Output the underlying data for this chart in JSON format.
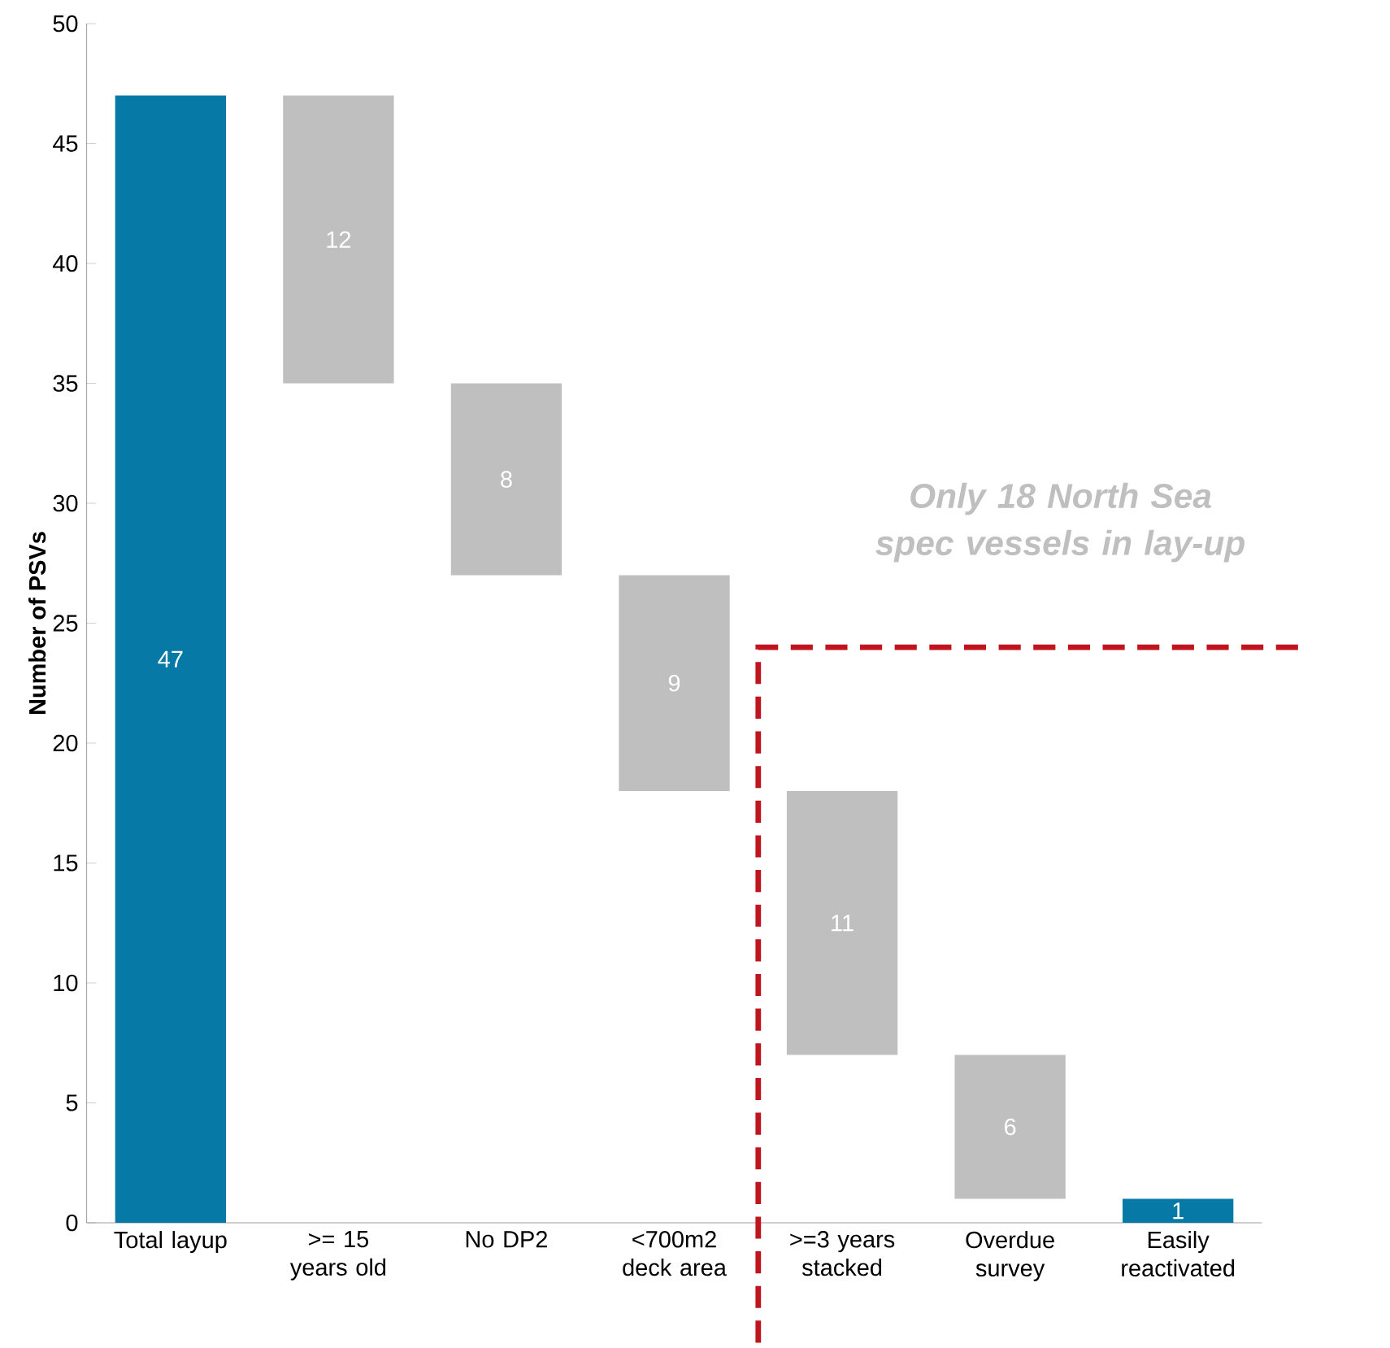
{
  "chart_data": {
    "type": "bar",
    "ylabel": "Number of PSVs",
    "categories": [
      "Total layup",
      ">= 15 years old",
      "No DP2",
      "<700m2 deck area",
      ">=3 years stacked",
      "Overdue survey",
      "Easily reactivated"
    ],
    "values": [
      47,
      12,
      8,
      9,
      11,
      6,
      1
    ],
    "base": [
      0,
      35,
      27,
      18,
      7,
      1,
      0
    ],
    "colors": [
      "#0779a6",
      "#bfbfbf",
      "#bfbfbf",
      "#bfbfbf",
      "#bfbfbf",
      "#bfbfbf",
      "#0779a6"
    ],
    "ylim": [
      0,
      50
    ],
    "yticks": [
      0,
      5,
      10,
      15,
      20,
      25,
      30,
      35,
      40,
      45,
      50
    ],
    "data_labels": true,
    "grid": false,
    "ref_lines": [
      {
        "axis": "y",
        "value": 24,
        "color": "#c0141e",
        "line_style": "dashed"
      }
    ],
    "annotations": [
      "Only 18 North Sea spec vessels in lay-up"
    ]
  }
}
